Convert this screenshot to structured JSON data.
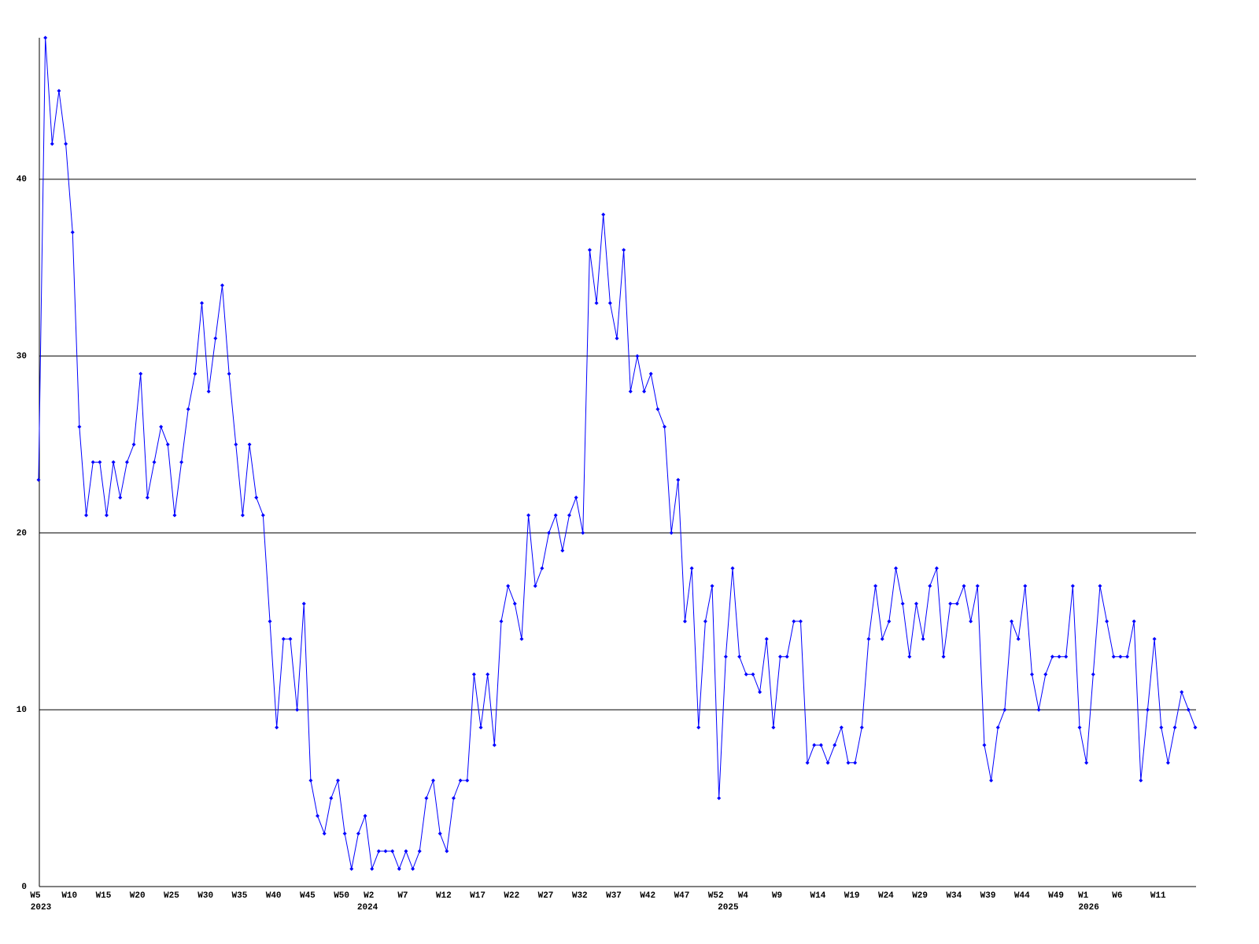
{
  "chart_data": {
    "type": "line",
    "categories": [
      "W5",
      null,
      null,
      null,
      null,
      "W10",
      null,
      null,
      null,
      null,
      "W15",
      null,
      null,
      null,
      null,
      "W20",
      null,
      null,
      null,
      null,
      "W25",
      null,
      null,
      null,
      null,
      "W30",
      null,
      null,
      null,
      null,
      "W35",
      null,
      null,
      null,
      null,
      "W40",
      null,
      null,
      null,
      null,
      "W45",
      null,
      null,
      null,
      null,
      "W50",
      null,
      null,
      null,
      "W2",
      null,
      null,
      null,
      null,
      "W7",
      null,
      null,
      null,
      null,
      null,
      "W12",
      null,
      null,
      null,
      null,
      "W17",
      null,
      null,
      null,
      null,
      "W22",
      null,
      null,
      null,
      null,
      "W27",
      null,
      null,
      null,
      null,
      "W32",
      null,
      null,
      null,
      null,
      "W37",
      null,
      null,
      null,
      null,
      "W42",
      null,
      null,
      null,
      null,
      "W47",
      null,
      null,
      null,
      null,
      "W52",
      null,
      null,
      null,
      "W4",
      null,
      null,
      null,
      null,
      "W9",
      null,
      null,
      null,
      null,
      null,
      "W14",
      null,
      null,
      null,
      null,
      "W19",
      null,
      null,
      null,
      null,
      "W24",
      null,
      null,
      null,
      null,
      "W29",
      null,
      null,
      null,
      null,
      "W34",
      null,
      null,
      null,
      null,
      "W39",
      null,
      null,
      null,
      null,
      "W44",
      null,
      null,
      null,
      null,
      "W49",
      null,
      null,
      null,
      "W1",
      null,
      null,
      null,
      null,
      "W6",
      null,
      null,
      null,
      null,
      null,
      "W11",
      null,
      null,
      null,
      null,
      null
    ],
    "x_years": [
      "2023",
      null,
      null,
      null,
      null,
      null,
      null,
      null,
      null,
      null,
      null,
      null,
      null,
      null,
      null,
      null,
      null,
      null,
      null,
      null,
      null,
      null,
      null,
      null,
      null,
      null,
      null,
      null,
      null,
      null,
      null,
      null,
      null,
      null,
      null,
      null,
      null,
      null,
      null,
      null,
      null,
      null,
      null,
      null,
      null,
      null,
      null,
      null,
      "2024",
      null,
      null,
      null,
      null,
      null,
      null,
      null,
      null,
      null,
      null,
      null,
      null,
      null,
      null,
      null,
      null,
      null,
      null,
      null,
      null,
      null,
      null,
      null,
      null,
      null,
      null,
      null,
      null,
      null,
      null,
      null,
      null,
      null,
      null,
      null,
      null,
      null,
      null,
      null,
      null,
      null,
      null,
      null,
      null,
      null,
      null,
      null,
      null,
      null,
      null,
      null,
      null,
      "2025",
      null,
      null,
      null,
      null,
      null,
      null,
      null,
      null,
      null,
      null,
      null,
      null,
      null,
      null,
      null,
      null,
      null,
      null,
      null,
      null,
      null,
      null,
      null,
      null,
      null,
      null,
      null,
      null,
      null,
      null,
      null,
      null,
      null,
      null,
      null,
      null,
      null,
      null,
      null,
      null,
      null,
      null,
      null,
      null,
      null,
      null,
      null,
      null,
      null,
      null,
      null,
      null,
      "2026",
      null,
      null,
      null,
      null,
      null,
      null,
      null,
      null,
      null,
      null,
      null,
      null,
      null,
      null,
      null,
      null
    ],
    "values": [
      23,
      48,
      42,
      45,
      42,
      37,
      26,
      21,
      24,
      24,
      21,
      24,
      22,
      24,
      25,
      29,
      22,
      24,
      26,
      25,
      21,
      24,
      27,
      29,
      33,
      28,
      31,
      34,
      29,
      25,
      21,
      25,
      22,
      21,
      15,
      9,
      14,
      14,
      10,
      16,
      6,
      4,
      3,
      5,
      6,
      3,
      1,
      3,
      4,
      1,
      2,
      2,
      2,
      1,
      2,
      1,
      2,
      5,
      6,
      3,
      2,
      5,
      6,
      6,
      12,
      9,
      12,
      8,
      15,
      17,
      16,
      14,
      21,
      17,
      18,
      20,
      21,
      19,
      21,
      22,
      20,
      36,
      33,
      38,
      33,
      31,
      36,
      28,
      30,
      28,
      29,
      27,
      26,
      20,
      23,
      15,
      18,
      9,
      15,
      17,
      5,
      13,
      18,
      13,
      12,
      12,
      11,
      14,
      9,
      13,
      13,
      15,
      15,
      7,
      8,
      8,
      7,
      8,
      9,
      7,
      7,
      9,
      14,
      17,
      14,
      15,
      18,
      16,
      13,
      16,
      14,
      17,
      18,
      13,
      16,
      16,
      17,
      15,
      17,
      8,
      6,
      9,
      10,
      15,
      14,
      17,
      12,
      10,
      12,
      13,
      13,
      13,
      17,
      9,
      7,
      12,
      17,
      15,
      13,
      13,
      13,
      15,
      6,
      10,
      14,
      9,
      7,
      9,
      11,
      10,
      9
    ],
    "color": "#0000ff",
    "ylim": [
      0,
      48
    ],
    "yticks": [
      0,
      10,
      20,
      30,
      40
    ],
    "grid": true
  }
}
